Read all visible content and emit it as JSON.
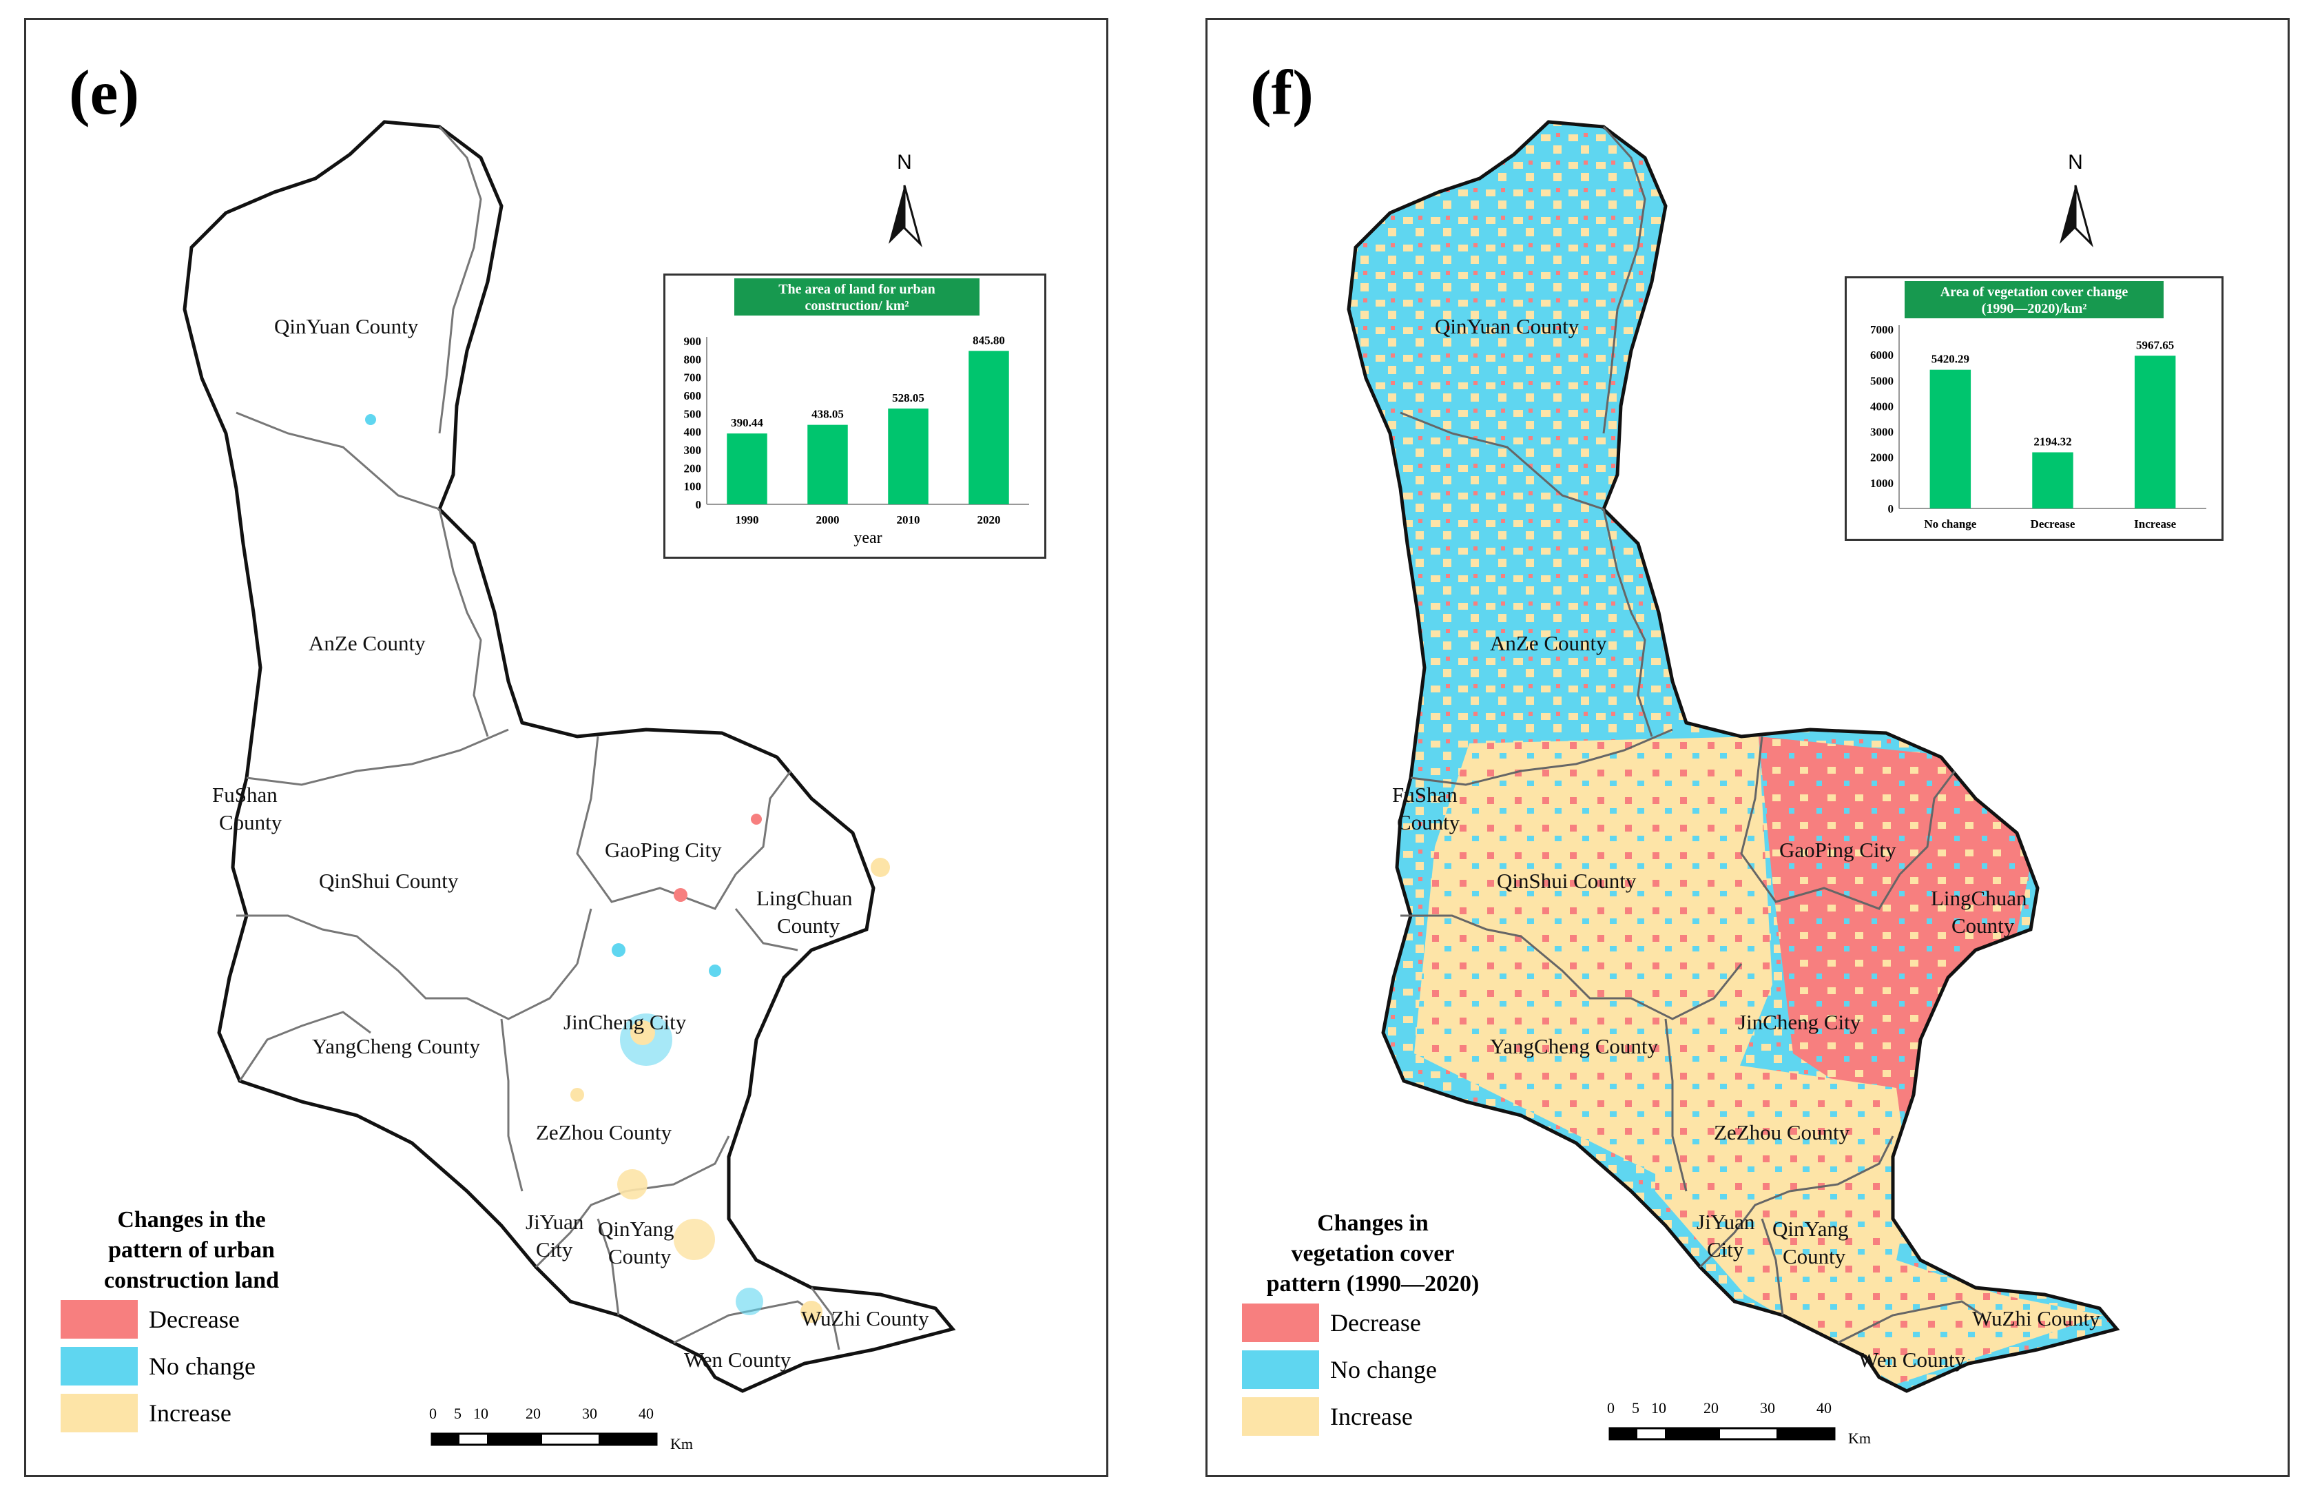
{
  "panels": [
    {
      "id": "e",
      "label": "(e)",
      "chart_data": {
        "type": "bar",
        "title": "The area of land for urban construction/ km²",
        "title_line1": "The area of land for urban",
        "title_line2": "construction/ km²",
        "categories": [
          "1990",
          "2000",
          "2010",
          "2020"
        ],
        "values": [
          390.44,
          438.05,
          528.05,
          845.8
        ],
        "value_labels": [
          "390.44",
          "438.05",
          "528.05",
          "845.80"
        ],
        "ylim": [
          0,
          900
        ],
        "yticks": [
          "0",
          "100",
          "200",
          "300",
          "400",
          "500",
          "600",
          "700",
          "800",
          "900"
        ],
        "xlabel": "year",
        "ylabel": "",
        "bar_color": "#00c56e",
        "header_color": "#17994f"
      },
      "legend": {
        "title_lines": [
          "Changes in the",
          "pattern of urban",
          "construction land"
        ],
        "items": [
          {
            "label": "Decrease",
            "color": "#f77f7f"
          },
          {
            "label": "No change",
            "color": "#5fd6f0"
          },
          {
            "label": "Increase",
            "color": "#fde4a7"
          }
        ]
      },
      "counties": [
        {
          "name": "QinYuan County"
        },
        {
          "name": "AnZe County"
        },
        {
          "name": "FuShan",
          "line2": "County"
        },
        {
          "name": "QinShui County"
        },
        {
          "name": "GaoPing City"
        },
        {
          "name": "LingChuan",
          "line2": "County"
        },
        {
          "name": "YangCheng County"
        },
        {
          "name": "JinCheng City"
        },
        {
          "name": "ZeZhou County"
        },
        {
          "name": "JiYuan",
          "line2": "City"
        },
        {
          "name": "QinYang",
          "line2": "County"
        },
        {
          "name": "WuZhi County"
        },
        {
          "name": "Wen County"
        }
      ]
    },
    {
      "id": "f",
      "label": "(f)",
      "chart_data": {
        "type": "bar",
        "title": "Area of vegetation cover change (1990—2020)/km²",
        "title_line1": "Area of vegetation cover change",
        "title_line2": "(1990—2020)/km²",
        "categories": [
          "No change",
          "Decrease",
          "Increase"
        ],
        "values": [
          5420.29,
          2194.32,
          5967.65
        ],
        "value_labels": [
          "5420.29",
          "2194.32",
          "5967.65"
        ],
        "ylim": [
          0,
          7000
        ],
        "yticks": [
          "0",
          "1000",
          "2000",
          "3000",
          "4000",
          "5000",
          "6000",
          "7000"
        ],
        "xlabel": "",
        "ylabel": "",
        "bar_color": "#00c56e",
        "header_color": "#17994f"
      },
      "legend": {
        "title_lines": [
          "Changes in",
          "vegetation cover",
          "pattern (1990—2020)"
        ],
        "items": [
          {
            "label": "Decrease",
            "color": "#f77f7f"
          },
          {
            "label": "No change",
            "color": "#5fd6f0"
          },
          {
            "label": "Increase",
            "color": "#fde4a7"
          }
        ]
      },
      "counties": [
        {
          "name": "QinYuan County"
        },
        {
          "name": "AnZe County"
        },
        {
          "name": "FuShan",
          "line2": "County"
        },
        {
          "name": "QinShui County"
        },
        {
          "name": "GaoPing City"
        },
        {
          "name": "LingChuan",
          "line2": "County"
        },
        {
          "name": "YangCheng County"
        },
        {
          "name": "JinCheng City"
        },
        {
          "name": "ZeZhou County"
        },
        {
          "name": "JiYuan",
          "line2": "City"
        },
        {
          "name": "QinYang",
          "line2": "County"
        },
        {
          "name": "WuZhi County"
        },
        {
          "name": "Wen County"
        }
      ]
    }
  ],
  "north_label": "N",
  "scale": {
    "ticks": [
      "0",
      "5",
      "10",
      "20",
      "30",
      "40"
    ],
    "unit": "Km"
  }
}
